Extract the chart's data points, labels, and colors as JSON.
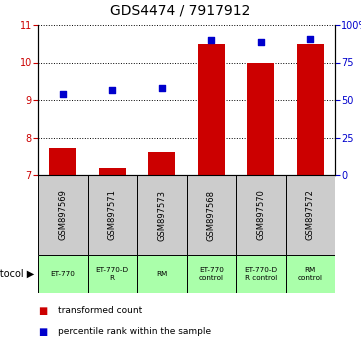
{
  "title": "GDS4474 / 7917912",
  "samples": [
    "GSM897569",
    "GSM897571",
    "GSM897573",
    "GSM897568",
    "GSM897570",
    "GSM897572"
  ],
  "transformed_counts": [
    7.72,
    7.2,
    7.62,
    10.5,
    10.0,
    10.5
  ],
  "percentile_ranks_pct": [
    54,
    57,
    58,
    90,
    89,
    91
  ],
  "ylim_left": [
    7,
    11
  ],
  "ylim_right": [
    0,
    100
  ],
  "yticks_left": [
    7,
    8,
    9,
    10,
    11
  ],
  "yticks_right": [
    0,
    25,
    50,
    75,
    100
  ],
  "ytick_labels_right": [
    "0",
    "25",
    "50",
    "75",
    "100%"
  ],
  "bar_color": "#cc0000",
  "dot_color": "#0000cc",
  "protocols": [
    "ET-770",
    "ET-770-D\nR",
    "RM",
    "ET-770\ncontrol",
    "ET-770-D\nR control",
    "RM\ncontrol"
  ],
  "sample_bg": "#cccccc",
  "protocol_bg": "#aaffaa",
  "grid_color": "black",
  "ylabel_left_color": "#cc0000",
  "ylabel_right_color": "#0000cc",
  "bar_bottom": 7.0
}
